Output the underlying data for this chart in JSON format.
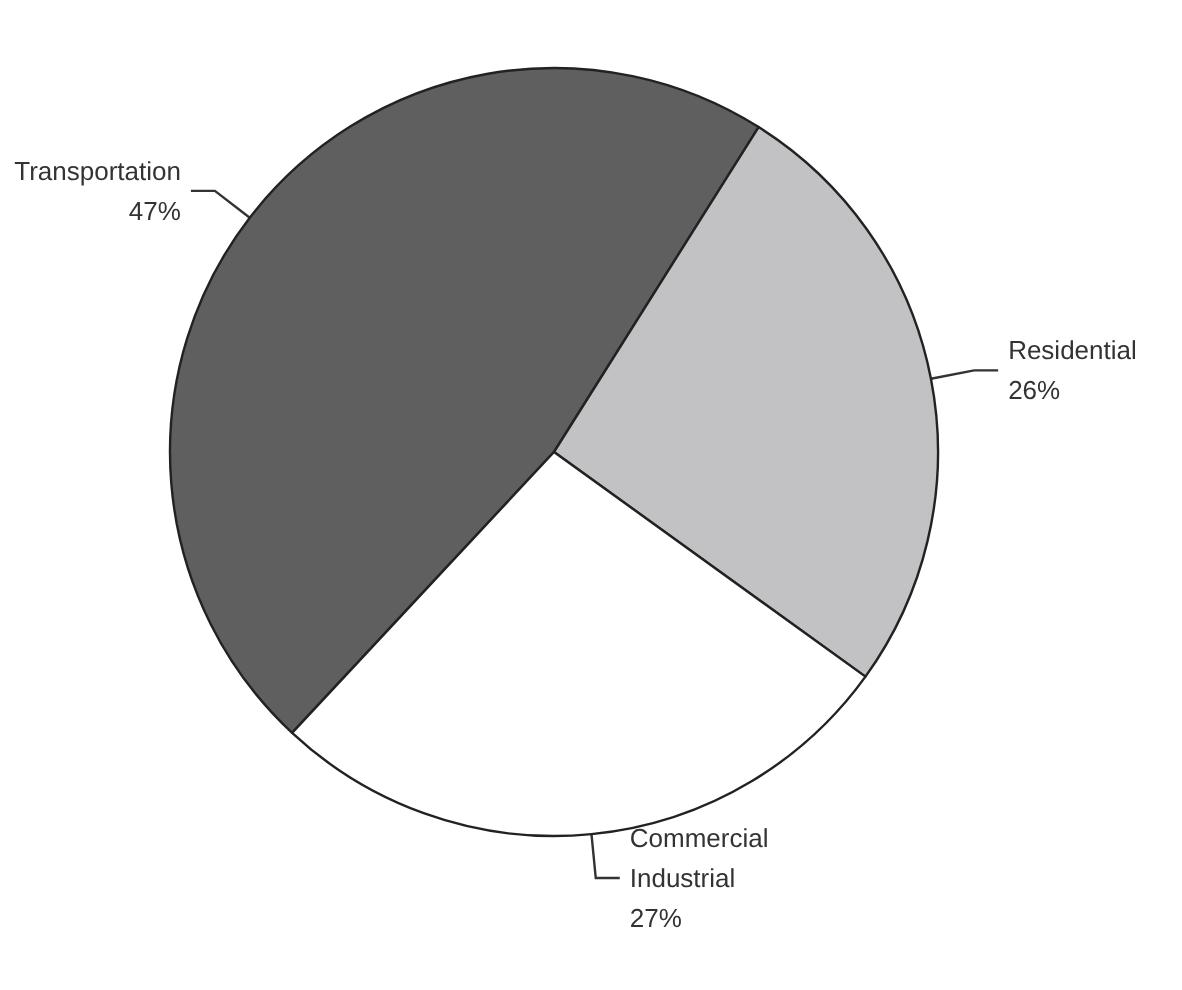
{
  "chart_data": {
    "type": "pie",
    "categories": [
      "Transportation",
      "Residential",
      "Commercial Industrial"
    ],
    "values": [
      47,
      26,
      27
    ],
    "colors": [
      "#5f5f5f",
      "#c2c2c4",
      "#ffffff"
    ],
    "value_labels": [
      "47%",
      "26%",
      "27%"
    ],
    "legend": false
  }
}
